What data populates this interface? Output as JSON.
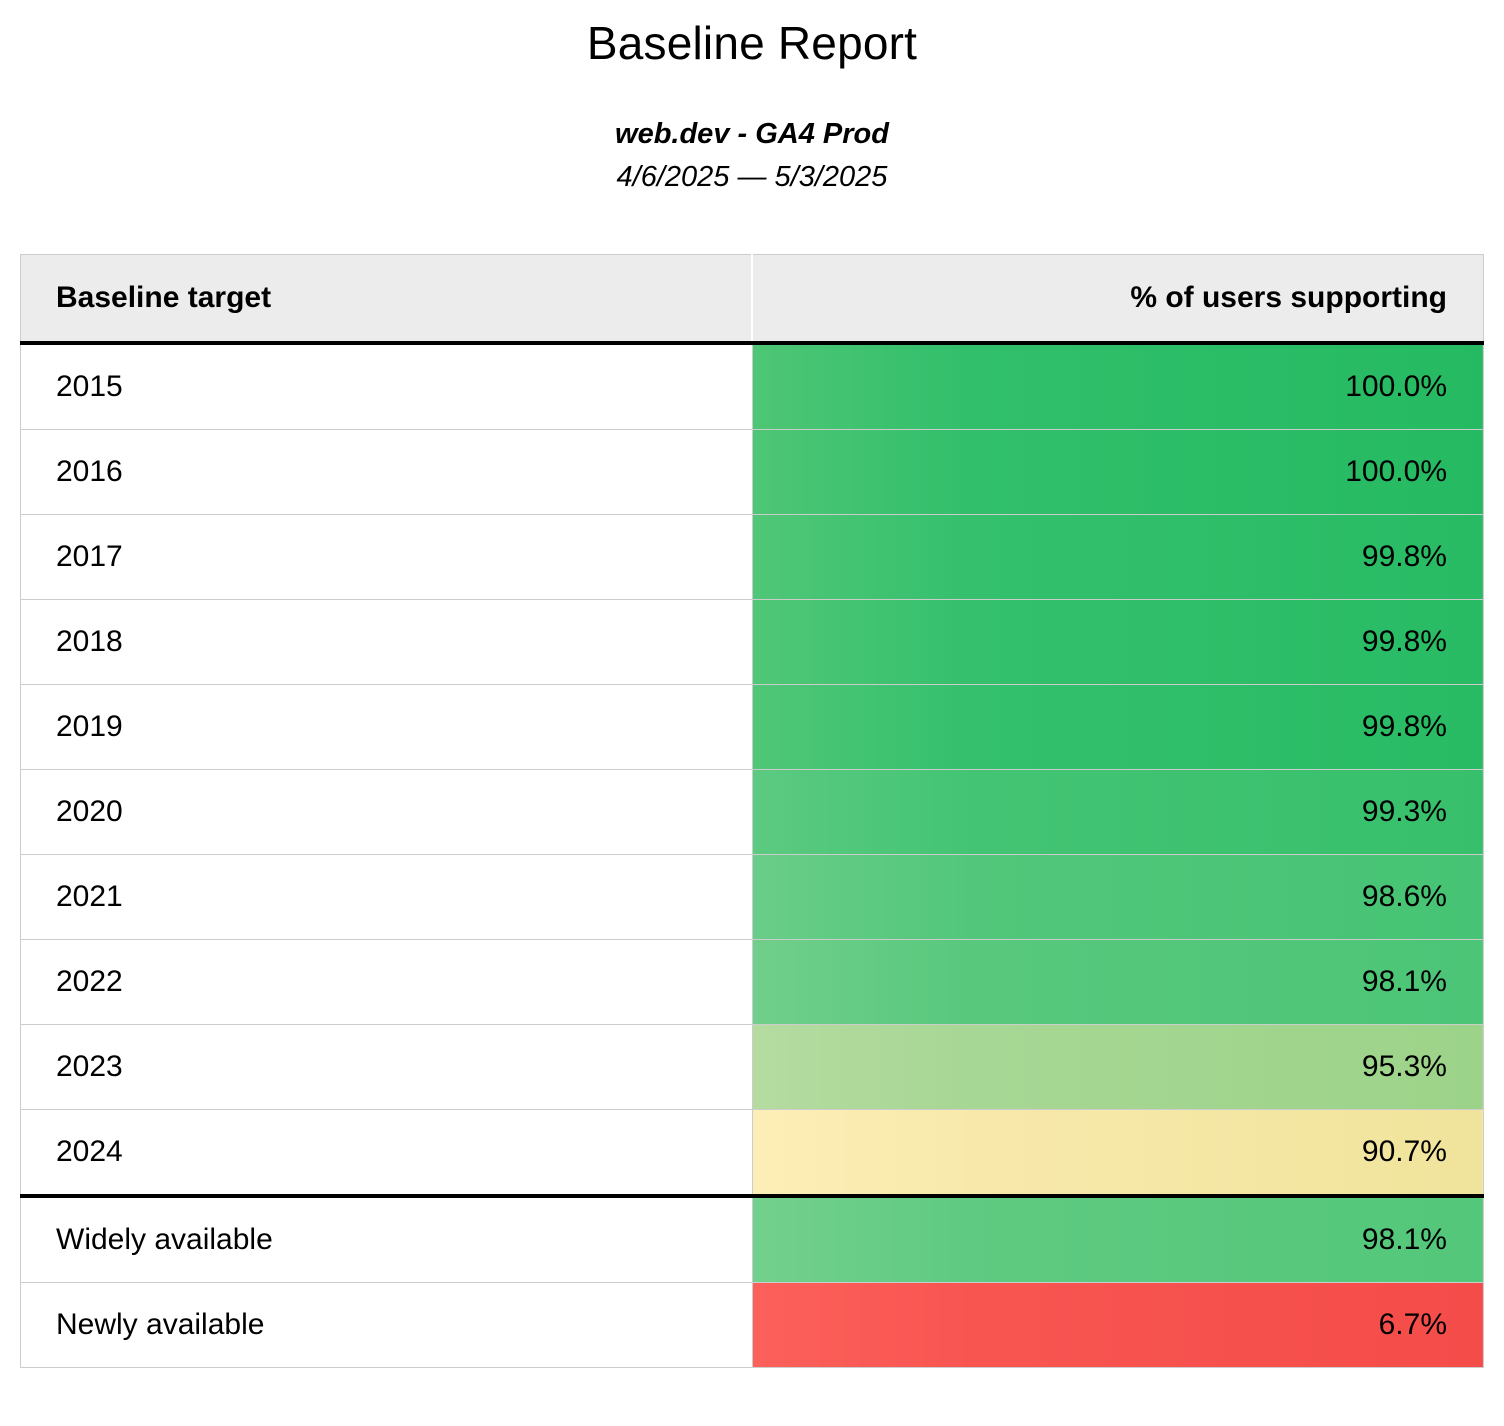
{
  "page": {
    "title": "Baseline Report",
    "subtitle": "web.dev - GA4 Prod",
    "date_range": "4/6/2025 — 5/3/2025"
  },
  "table": {
    "columns": [
      {
        "label": "Baseline target"
      },
      {
        "label": "% of users supporting"
      }
    ],
    "rows": [
      {
        "target": "2015",
        "value": "100.0%",
        "colors": [
          "#4ec675",
          "#31bf6b",
          "#25ba62"
        ]
      },
      {
        "target": "2016",
        "value": "100.0%",
        "colors": [
          "#4ec675",
          "#31bf6b",
          "#25ba62"
        ]
      },
      {
        "target": "2017",
        "value": "99.8%",
        "colors": [
          "#50c777",
          "#34c06d",
          "#28bb64"
        ]
      },
      {
        "target": "2018",
        "value": "99.8%",
        "colors": [
          "#50c777",
          "#34c06d",
          "#28bb64"
        ]
      },
      {
        "target": "2019",
        "value": "99.8%",
        "colors": [
          "#50c777",
          "#34c06d",
          "#28bb64"
        ]
      },
      {
        "target": "2020",
        "value": "99.3%",
        "colors": [
          "#5cca81",
          "#43c474",
          "#37c06c"
        ]
      },
      {
        "target": "2021",
        "value": "98.6%",
        "colors": [
          "#69cd88",
          "#52c77b",
          "#46c374"
        ]
      },
      {
        "target": "2022",
        "value": "98.1%",
        "colors": [
          "#70cf8b",
          "#58c87d",
          "#4cc577"
        ]
      },
      {
        "target": "2023",
        "value": "95.3%",
        "colors": [
          "#b5dba1",
          "#a7d794",
          "#9cd389"
        ]
      },
      {
        "target": "2024",
        "value": "90.7%",
        "colors": [
          "#fceeb6",
          "#f8e9ab",
          "#f0e49c"
        ]
      },
      {
        "target": "Widely available",
        "value": "98.1%",
        "colors": [
          "#73d08d",
          "#5fca81",
          "#53c77a"
        ],
        "group_start": true
      },
      {
        "target": "Newly available",
        "value": "6.7%",
        "colors": [
          "#fc605a",
          "#f85551",
          "#f44c49"
        ]
      }
    ],
    "chart_data": {
      "type": "table",
      "title": "Baseline Report",
      "categories": [
        "2015",
        "2016",
        "2017",
        "2018",
        "2019",
        "2020",
        "2021",
        "2022",
        "2023",
        "2024",
        "Widely available",
        "Newly available"
      ],
      "values": [
        100.0,
        100.0,
        99.8,
        99.8,
        99.8,
        99.3,
        98.6,
        98.1,
        95.3,
        90.7,
        98.1,
        6.7
      ],
      "value_unit": "%",
      "xlabel": "Baseline target",
      "ylabel": "% of users supporting"
    }
  }
}
